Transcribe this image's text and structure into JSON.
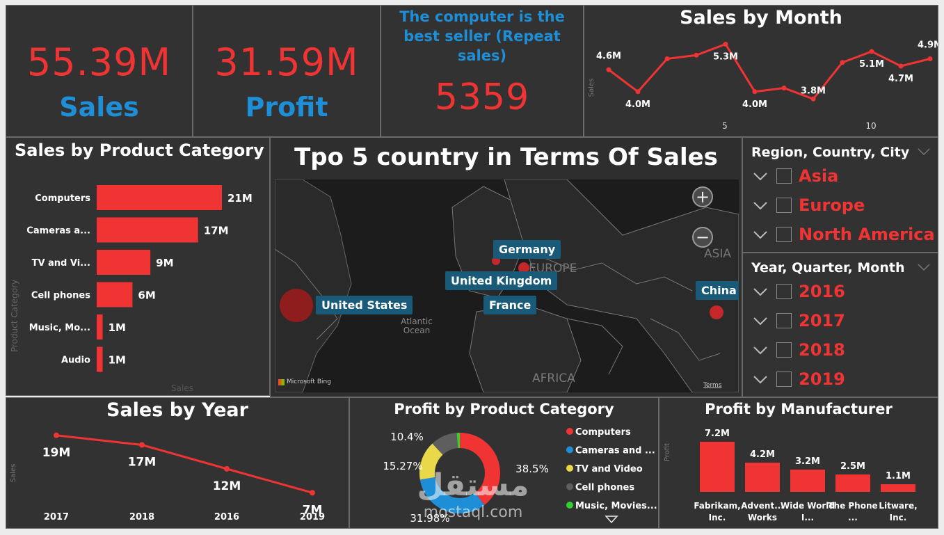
{
  "kpis": {
    "sales": {
      "value": "55.39M",
      "label": "Sales"
    },
    "profit": {
      "value": "31.59M",
      "label": "Profit"
    },
    "best_seller": {
      "caption": "The computer is the best seller (Repeat sales)",
      "value": "5359"
    }
  },
  "sales_by_month": {
    "title": "Sales by Month",
    "ylabel": "Sales",
    "x_ticks": [
      "5",
      "10"
    ],
    "labels": [
      "4.6M",
      "4.0M",
      "5.3M",
      "4.0M",
      "3.8M",
      "5.1M",
      "4.7M",
      "4.9M"
    ]
  },
  "sales_by_category": {
    "title": "Sales by Product Category",
    "ylabel": "Product Category",
    "xlabel": "Sales"
  },
  "map": {
    "title": "Tpo 5 country in Terms Of Sales",
    "countries": [
      "Germany",
      "United Kingdom",
      "France",
      "United States",
      "China"
    ],
    "region_labels": [
      "EUROPE",
      "ASIA",
      "AFRICA"
    ],
    "ocean_label": "Atlantic Ocean",
    "brand": "Microsoft Bing",
    "terms": "Terms",
    "zoom_in": "+",
    "zoom_out": "−"
  },
  "slicer_region": {
    "title": "Region, Country, City",
    "items": [
      "Asia",
      "Europe",
      "North America"
    ]
  },
  "slicer_year": {
    "title": "Year, Quarter, Month",
    "items": [
      "2016",
      "2017",
      "2018",
      "2019"
    ]
  },
  "sales_by_year": {
    "title": "Sales by Year",
    "ylabel": "Sales"
  },
  "profit_by_category": {
    "title": "Profit by Product Category",
    "legend": [
      "Computers",
      "Cameras and ...",
      "TV and Video",
      "Cell phones",
      "Music, Movies..."
    ]
  },
  "profit_by_manufacturer": {
    "title": "Profit by Manufacturer",
    "ylabel": "Profit"
  },
  "watermark": {
    "text": "mostaql.com"
  },
  "colors": {
    "accent_red": "#f03434",
    "accent_blue": "#1e8fd6",
    "panel": "#323232"
  },
  "chart_data": [
    {
      "type": "line",
      "title": "Sales by Month",
      "ylabel": "Sales",
      "x": [
        1,
        2,
        3,
        4,
        5,
        6,
        7,
        8,
        9,
        10,
        11,
        12
      ],
      "series": [
        {
          "values": [
            4.6,
            4.0,
            4.9,
            5.0,
            5.3,
            4.0,
            4.1,
            3.8,
            4.8,
            5.1,
            4.7,
            4.9
          ]
        }
      ],
      "data_labels": [
        "4.6M",
        "4.0M",
        "5.3M",
        "4.0M",
        "3.8M",
        "5.1M",
        "4.7M",
        "4.9M"
      ],
      "data_label_index": [
        0,
        1,
        4,
        5,
        7,
        9,
        10,
        11
      ]
    },
    {
      "type": "bar",
      "title": "Sales by Product Category",
      "categories": [
        "Computers",
        "Cameras a...",
        "TV and Vi...",
        "Cell phones",
        "Music, Mo...",
        "Audio"
      ],
      "values": [
        21,
        17,
        9,
        6,
        1,
        1
      ],
      "labels": [
        "21M",
        "17M",
        "9M",
        "6M",
        "1M",
        "1M"
      ],
      "xlabel": "Sales",
      "ylabel": "Product Category"
    },
    {
      "type": "line",
      "title": "Sales by Year",
      "categories": [
        "2017",
        "2018",
        "2016",
        "2019"
      ],
      "values": [
        19,
        17,
        12,
        7
      ],
      "labels": [
        "19M",
        "17M",
        "12M",
        "7M"
      ],
      "ylabel": "Sales"
    },
    {
      "type": "pie",
      "title": "Profit by Product Category",
      "categories": [
        "Computers",
        "Cameras and ...",
        "TV and Video",
        "Cell phones",
        "Music, Movies..."
      ],
      "values": [
        38.5,
        31.98,
        15.27,
        10.4,
        1.2
      ],
      "labels": [
        "38.5%",
        "31.98%",
        "15.27%",
        "10.4%",
        ""
      ],
      "colors": [
        "#f03434",
        "#1e8fd6",
        "#e8d84a",
        "#5e5e5e",
        "#2fd12f"
      ]
    },
    {
      "type": "bar",
      "title": "Profit by Manufacturer",
      "categories": [
        "Fabrikam, Inc.",
        "Advent... Works",
        "Wide World I...",
        "The Phone ...",
        "Litware, Inc."
      ],
      "values": [
        7.2,
        4.2,
        3.2,
        2.5,
        1.1
      ],
      "labels": [
        "7.2M",
        "4.2M",
        "3.2M",
        "2.5M",
        "1.1M"
      ],
      "ylabel": "Profit"
    }
  ]
}
